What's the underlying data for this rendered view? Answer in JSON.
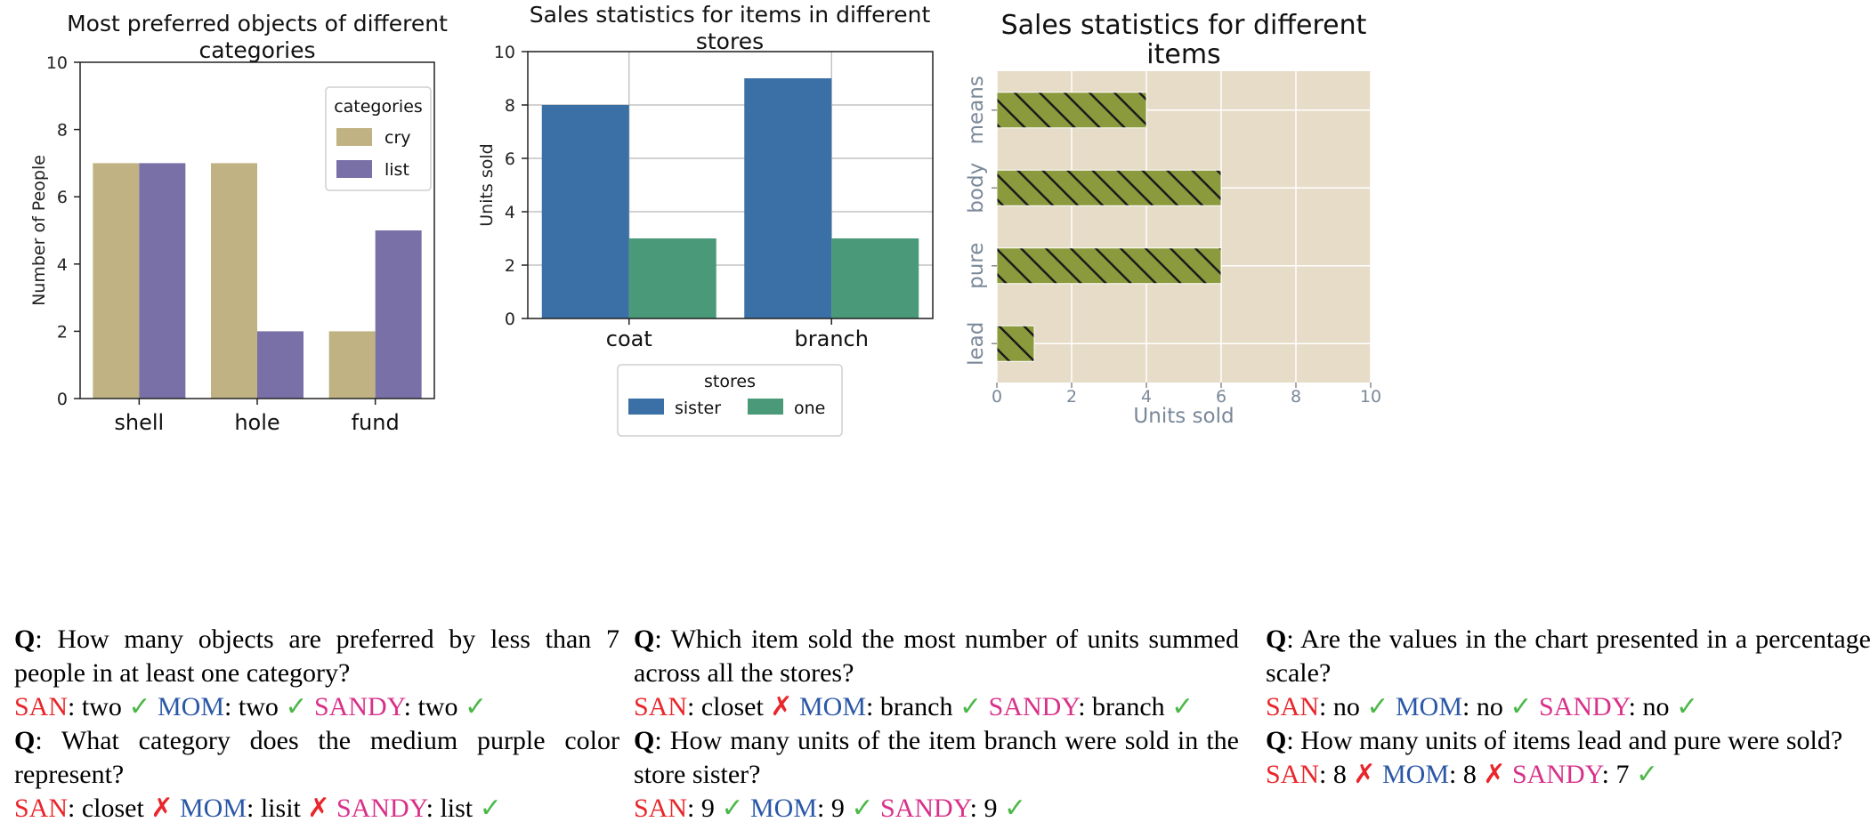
{
  "chart_data": [
    {
      "type": "bar",
      "title": "Most preferred objects of different categories",
      "title_lines": [
        "Most preferred objects of different",
        "categories"
      ],
      "xlabel": "",
      "ylabel": "Number of People",
      "categories": [
        "shell",
        "hole",
        "fund"
      ],
      "series": [
        {
          "name": "cry",
          "values": [
            7,
            7,
            2
          ],
          "color": "#c0b282"
        },
        {
          "name": "list",
          "values": [
            7,
            2,
            5
          ],
          "color": "#7a70a8"
        }
      ],
      "ylim": [
        0,
        10
      ],
      "yticks": [
        "0",
        "2",
        "4",
        "6",
        "8",
        "10"
      ],
      "grid": false,
      "legend": {
        "title": "categories",
        "placement": "top-right"
      }
    },
    {
      "type": "bar",
      "title": "Sales statistics for items in different stores",
      "title_lines": [
        "Sales statistics for items in different",
        "stores"
      ],
      "xlabel": "",
      "ylabel": "Units sold",
      "categories": [
        "coat",
        "branch"
      ],
      "series": [
        {
          "name": "sister",
          "values": [
            8,
            9
          ],
          "color": "#3a70a6"
        },
        {
          "name": "one",
          "values": [
            3,
            3
          ],
          "color": "#4a9a7a"
        }
      ],
      "ylim": [
        0,
        10
      ],
      "yticks": [
        "0",
        "2",
        "4",
        "6",
        "8",
        "10"
      ],
      "grid": true,
      "legend": {
        "title": "stores",
        "placement": "below"
      }
    },
    {
      "type": "bar",
      "orientation": "horizontal",
      "title": "Sales statistics for different items",
      "title_lines": [
        "Sales statistics for different",
        "items"
      ],
      "xlabel": "Units sold",
      "ylabel": "",
      "categories": [
        "means",
        "body",
        "pure",
        "lead"
      ],
      "values": [
        4,
        6,
        6,
        1
      ],
      "color": "#8a9a3c",
      "background": "#e6dcc8",
      "hatch": true,
      "xlim": [
        0,
        10
      ],
      "xticks": [
        "0",
        "2",
        "4",
        "6",
        "8",
        "10"
      ],
      "grid": true
    }
  ],
  "qa": [
    {
      "items": [
        {
          "q_label": "Q",
          "q_text": ": How many objects are preferred by less than 7 people in at least one category?",
          "answers": [
            {
              "name": "SAN",
              "value": "two",
              "mark": "✓",
              "ok": true
            },
            {
              "name": "MOM",
              "value": "two",
              "mark": "✓",
              "ok": true
            },
            {
              "name": "SANDY",
              "value": "two",
              "mark": "✓",
              "ok": true
            }
          ]
        },
        {
          "q_label": "Q",
          "q_text": ": What category does the medium purple color represent?",
          "answers": [
            {
              "name": "SAN",
              "value": "closet",
              "mark": "✗",
              "ok": false
            },
            {
              "name": "MOM",
              "value": "lisit",
              "mark": "✗",
              "ok": false
            },
            {
              "name": "SANDY",
              "value": "list",
              "mark": "✓",
              "ok": true
            }
          ]
        }
      ]
    },
    {
      "items": [
        {
          "q_label": "Q",
          "q_text": ": Which item sold the most number of units summed across all the stores?",
          "answers": [
            {
              "name": "SAN",
              "value": "closet",
              "mark": "✗",
              "ok": false
            },
            {
              "name": "MOM",
              "value": "branch",
              "mark": "✓",
              "ok": true
            },
            {
              "name": "SANDY",
              "value": "branch",
              "mark": "✓",
              "ok": true
            }
          ]
        },
        {
          "q_label": "Q",
          "q_text": ": How many units of the item branch were sold in the store sister?",
          "answers": [
            {
              "name": "SAN",
              "value": "9",
              "mark": "✓",
              "ok": true
            },
            {
              "name": "MOM",
              "value": "9",
              "mark": "✓",
              "ok": true
            },
            {
              "name": "SANDY",
              "value": "9",
              "mark": "✓",
              "ok": true
            }
          ]
        }
      ]
    },
    {
      "items": [
        {
          "q_label": "Q",
          "q_text": ": Are the values in the chart presented in a percentage scale?",
          "answers": [
            {
              "name": "SAN",
              "value": "no",
              "mark": "✓",
              "ok": true
            },
            {
              "name": "MOM",
              "value": "no",
              "mark": "✓",
              "ok": true
            },
            {
              "name": "SANDY",
              "value": "no",
              "mark": "✓",
              "ok": true
            }
          ]
        },
        {
          "q_label": "Q",
          "q_text": ": How many units of items lead and pure were sold?",
          "answers": [
            {
              "name": "SAN",
              "value": "8",
              "mark": "✗",
              "ok": false
            },
            {
              "name": "MOM",
              "value": "8",
              "mark": "✗",
              "ok": false
            },
            {
              "name": "SANDY",
              "value": "7",
              "mark": "✓",
              "ok": true
            }
          ]
        }
      ]
    }
  ]
}
